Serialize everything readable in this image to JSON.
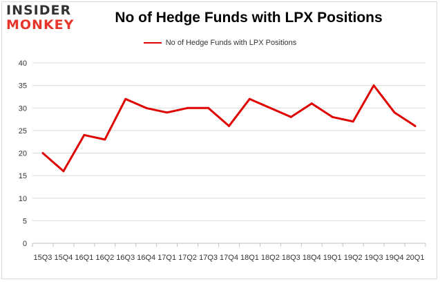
{
  "logo": {
    "line1": "INSIDER",
    "line2": "MONKEY"
  },
  "chart_data": {
    "type": "line",
    "title": "No of Hedge Funds with LPX Positions",
    "xlabel": "",
    "ylabel": "",
    "categories": [
      "15Q3",
      "15Q4",
      "16Q1",
      "16Q2",
      "16Q3",
      "16Q4",
      "17Q1",
      "17Q2",
      "17Q3",
      "17Q4",
      "18Q1",
      "18Q2",
      "18Q3",
      "18Q4",
      "19Q1",
      "19Q2",
      "19Q3",
      "19Q4",
      "20Q1"
    ],
    "series": [
      {
        "name": "No of Hedge Funds with LPX Positions",
        "color": "#e00000",
        "values": [
          20,
          16,
          24,
          23,
          32,
          30,
          29,
          30,
          30,
          26,
          32,
          30,
          28,
          31,
          28,
          27,
          35,
          29,
          26
        ]
      }
    ],
    "ylim": [
      0,
      40
    ],
    "yticks": [
      0,
      5,
      10,
      15,
      20,
      25,
      30,
      35,
      40
    ],
    "grid": true,
    "legend_position": "top-center"
  }
}
